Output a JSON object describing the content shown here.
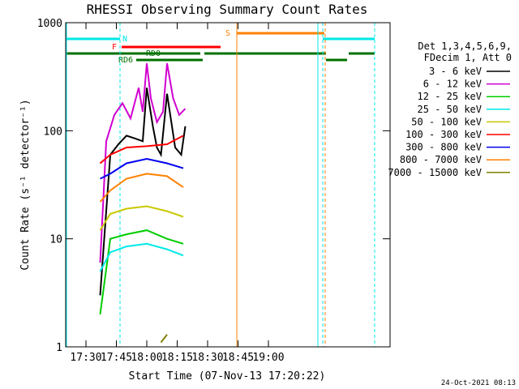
{
  "chart_data": {
    "type": "line",
    "title": "RHESSI Observing Summary Count Rates",
    "xlabel": "Start Time (07-Nov-13 17:20:22)",
    "ylabel": "Count Rate (s⁻¹ detector⁻¹)",
    "yscale": "log",
    "ylim": [
      1,
      1000
    ],
    "xlim_minutes": [
      0,
      160
    ],
    "x_ticks": [
      {
        "m": 10,
        "label": "17:30"
      },
      {
        "m": 25,
        "label": "17:45"
      },
      {
        "m": 40,
        "label": "18:00"
      },
      {
        "m": 55,
        "label": "18:15"
      },
      {
        "m": 70,
        "label": "18:30"
      },
      {
        "m": 85,
        "label": "18:45"
      },
      {
        "m": 100,
        "label": "19:00"
      }
    ],
    "y_ticks": [
      {
        "v": 1,
        "label": "1"
      },
      {
        "v": 10,
        "label": "10"
      },
      {
        "v": 100,
        "label": "100"
      },
      {
        "v": 1000,
        "label": "1000"
      }
    ],
    "legend_header": [
      "Det 1,3,4,5,6,9,",
      "FDecim 1, Att 0"
    ],
    "legend_position": "right",
    "series": [
      {
        "name": "3 - 6 keV",
        "color": "#000000",
        "x": [
          17,
          22,
          26,
          30,
          34,
          38,
          40,
          43,
          45,
          47,
          50,
          54,
          57,
          59
        ],
        "y": [
          3,
          60,
          75,
          90,
          85,
          80,
          250,
          110,
          70,
          60,
          220,
          70,
          60,
          110
        ]
      },
      {
        "name": "6 - 12 keV",
        "color": "#d000d0",
        "x": [
          17,
          20,
          24,
          28,
          32,
          36,
          38,
          40,
          42,
          45,
          48,
          50,
          53,
          56,
          59
        ],
        "y": [
          6,
          80,
          140,
          180,
          130,
          250,
          150,
          420,
          200,
          120,
          150,
          420,
          200,
          140,
          160
        ]
      },
      {
        "name": "12 - 25 keV",
        "color": "#00cc00",
        "x": [
          17,
          22,
          30,
          40,
          50,
          58
        ],
        "y": [
          2,
          10,
          11,
          12,
          10,
          9
        ]
      },
      {
        "name": "25 - 50 keV",
        "color": "#00e8e8",
        "x": [
          17,
          22,
          30,
          40,
          50,
          58
        ],
        "y": [
          5,
          7.5,
          8.5,
          9,
          8,
          7
        ]
      },
      {
        "name": "50 - 100 keV",
        "color": "#c8c800",
        "x": [
          17,
          22,
          30,
          40,
          50,
          58
        ],
        "y": [
          12,
          17,
          19,
          20,
          18,
          16
        ]
      },
      {
        "name": "100 - 300 keV",
        "color": "#ff0000",
        "x": [
          17,
          22,
          30,
          40,
          50,
          58
        ],
        "y": [
          50,
          60,
          70,
          72,
          75,
          90
        ]
      },
      {
        "name": "300 - 800 keV",
        "color": "#0000ee",
        "x": [
          17,
          22,
          30,
          40,
          50,
          58
        ],
        "y": [
          36,
          40,
          50,
          55,
          50,
          45
        ]
      },
      {
        "name": "800 - 7000 keV",
        "color": "#ff8000",
        "x": [
          17,
          22,
          30,
          40,
          50,
          58
        ],
        "y": [
          22,
          28,
          36,
          40,
          38,
          30
        ]
      },
      {
        "name": "7000 - 15000 keV",
        "color": "#808000",
        "x": [
          47,
          50
        ],
        "y": [
          1.1,
          1.3
        ]
      }
    ],
    "flag_labels": [
      "N",
      "F",
      "RD0",
      "RD6",
      "S"
    ],
    "timestamp": "24-Oct-2021 08:13"
  }
}
